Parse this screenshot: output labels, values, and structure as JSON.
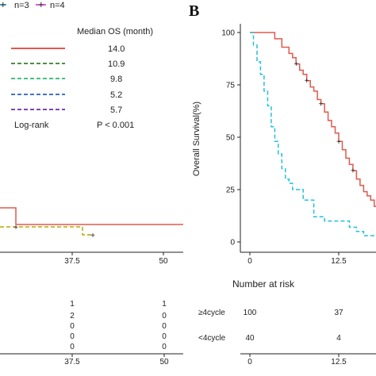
{
  "top_legend": [
    {
      "label": "n=3",
      "color": "#00a9e0",
      "icon": "plus-marker"
    },
    {
      "label": "n=4",
      "color": "#e020e0",
      "icon": "plus-marker"
    }
  ],
  "panel_b_letter": "B",
  "chart_data": [
    {
      "type": "line",
      "panel": "A",
      "legend": {
        "title": "Median OS (month)",
        "entries": [
          {
            "value": "14.0",
            "color": "#e05a4e",
            "dash": "solid"
          },
          {
            "value": "10.9",
            "color": "#3a7d2a",
            "dash": "dashed"
          },
          {
            "value": "9.8",
            "color": "#2eb872",
            "dash": "dashed"
          },
          {
            "value": "5.2",
            "color": "#2a5fc0",
            "dash": "dashed"
          },
          {
            "value": "5.7",
            "color": "#6a2fa0",
            "dash": "dashed"
          }
        ],
        "logrank_label": "Log-rank",
        "logrank_p": "P < 0.001"
      },
      "x_ticks": [
        "37.5",
        "50"
      ],
      "series": [
        {
          "color": "#e05a4e",
          "x": [
            31,
            31,
            50
          ],
          "y": [
            262,
            283,
            283
          ]
        },
        {
          "color": "#b8a800",
          "x": [
            31,
            38.5
          ],
          "y": [
            286,
            296
          ]
        }
      ],
      "risk_table": {
        "x_ticks": [
          "37.5",
          "50"
        ],
        "col_375": [
          "1",
          "2",
          "0",
          "0",
          "0"
        ],
        "col_50": [
          "1",
          "0",
          "0",
          "0",
          "0"
        ]
      }
    },
    {
      "type": "line",
      "panel": "B",
      "ylabel": "Overall Survival(%)",
      "y_ticks": [
        "100",
        "75",
        "50",
        "25",
        "0"
      ],
      "x_ticks": [
        "0",
        "12.5"
      ],
      "xlim": [
        0,
        18.5
      ],
      "ylim": [
        0,
        100
      ],
      "series": [
        {
          "label": "≥4cycle",
          "color": "#e05a4e",
          "dash": "solid",
          "points": [
            [
              0,
              100
            ],
            [
              3,
              100
            ],
            [
              3.5,
              97
            ],
            [
              4.5,
              93
            ],
            [
              5.5,
              90
            ],
            [
              6,
              88
            ],
            [
              6.5,
              85
            ],
            [
              7,
              82
            ],
            [
              7.5,
              80
            ],
            [
              8,
              77
            ],
            [
              8.5,
              74
            ],
            [
              9,
              72
            ],
            [
              9.5,
              68
            ],
            [
              10,
              66
            ],
            [
              10.5,
              62
            ],
            [
              11,
              58
            ],
            [
              11.5,
              55
            ],
            [
              12,
              52
            ],
            [
              12.5,
              48
            ],
            [
              13,
              44
            ],
            [
              13.5,
              40
            ],
            [
              14,
              37
            ],
            [
              14.5,
              34
            ],
            [
              15,
              30
            ],
            [
              15.5,
              27
            ],
            [
              16,
              24
            ],
            [
              16.5,
              22
            ],
            [
              17,
              20
            ],
            [
              17.5,
              17
            ],
            [
              18.5,
              17
            ]
          ],
          "censored": [
            [
              6.5,
              85
            ],
            [
              8,
              77
            ],
            [
              10,
              66
            ],
            [
              12.5,
              48
            ],
            [
              14.5,
              34
            ]
          ]
        },
        {
          "label": "<4cycle",
          "color": "#22c1d6",
          "dash": "dashed",
          "points": [
            [
              0,
              100
            ],
            [
              0.5,
              94
            ],
            [
              1,
              86
            ],
            [
              1.5,
              80
            ],
            [
              2,
              72
            ],
            [
              2.5,
              65
            ],
            [
              3,
              55
            ],
            [
              3.5,
              48
            ],
            [
              4,
              42
            ],
            [
              4.5,
              35
            ],
            [
              5,
              30
            ],
            [
              5.5,
              28
            ],
            [
              6,
              25
            ],
            [
              7.5,
              25
            ],
            [
              7.5,
              20
            ],
            [
              8.5,
              20
            ],
            [
              9,
              12
            ],
            [
              10.5,
              12
            ],
            [
              10.5,
              10
            ],
            [
              14,
              10
            ],
            [
              14,
              7
            ],
            [
              15,
              7
            ],
            [
              15,
              5
            ],
            [
              16,
              5
            ],
            [
              16,
              3
            ],
            [
              18.5,
              3
            ]
          ],
          "censored": []
        }
      ],
      "risk_table": {
        "title": "Number at risk",
        "rows": [
          {
            "label": "≥4cycle",
            "color": "#e05a4e",
            "values": [
              "100",
              "37"
            ]
          },
          {
            "label": "<4cycle",
            "color": "#22c1d6",
            "values": [
              "40",
              "4"
            ]
          }
        ],
        "x_ticks": [
          "0",
          "12.5"
        ]
      }
    }
  ]
}
